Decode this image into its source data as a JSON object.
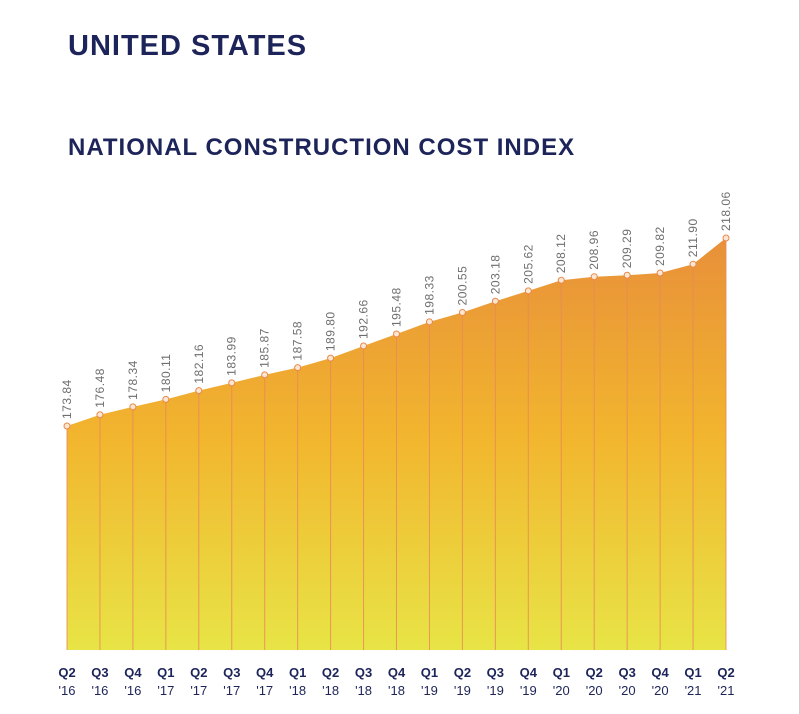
{
  "header": {
    "region_title": "UNITED STATES"
  },
  "colors": {
    "title": "#1d2459",
    "area_top": "#e8903a",
    "area_mid": "#f2b52e",
    "area_bottom": "#e8e446",
    "gridline": "#e98a57",
    "marker_fill": "#fbe6d2",
    "marker_stroke": "#e8874a",
    "value_label": "#6e6e6e"
  },
  "chart_data": {
    "type": "area",
    "title": "NATIONAL CONSTRUCTION COST INDEX",
    "xlabel": "",
    "ylabel": "",
    "ylim": [
      130,
      220
    ],
    "categories": [
      {
        "quarter": "Q2",
        "year": "'16"
      },
      {
        "quarter": "Q3",
        "year": "'16"
      },
      {
        "quarter": "Q4",
        "year": "'16"
      },
      {
        "quarter": "Q1",
        "year": "'17"
      },
      {
        "quarter": "Q2",
        "year": "'17"
      },
      {
        "quarter": "Q3",
        "year": "'17"
      },
      {
        "quarter": "Q4",
        "year": "'17"
      },
      {
        "quarter": "Q1",
        "year": "'18"
      },
      {
        "quarter": "Q2",
        "year": "'18"
      },
      {
        "quarter": "Q3",
        "year": "'18"
      },
      {
        "quarter": "Q4",
        "year": "'18"
      },
      {
        "quarter": "Q1",
        "year": "'19"
      },
      {
        "quarter": "Q2",
        "year": "'19"
      },
      {
        "quarter": "Q3",
        "year": "'19"
      },
      {
        "quarter": "Q4",
        "year": "'19"
      },
      {
        "quarter": "Q1",
        "year": "'20"
      },
      {
        "quarter": "Q2",
        "year": "'20"
      },
      {
        "quarter": "Q3",
        "year": "'20"
      },
      {
        "quarter": "Q4",
        "year": "'20"
      },
      {
        "quarter": "Q1",
        "year": "'21"
      },
      {
        "quarter": "Q2",
        "year": "'21"
      }
    ],
    "series": [
      {
        "name": "National Construction Cost Index",
        "values": [
          173.84,
          176.48,
          178.34,
          180.11,
          182.16,
          183.99,
          185.87,
          187.58,
          189.8,
          192.66,
          195.48,
          198.33,
          200.55,
          203.18,
          205.62,
          208.12,
          208.96,
          209.29,
          209.82,
          211.9,
          218.06
        ],
        "labels": [
          "173.84",
          "176.48",
          "178.34",
          "180.11",
          "182.16",
          "183.99",
          "185.87",
          "187.58",
          "189.80",
          "192.66",
          "195.48",
          "198.33",
          "200.55",
          "203.18",
          "205.62",
          "208.12",
          "208.96",
          "209.29",
          "209.82",
          "211.90",
          "218.06"
        ]
      }
    ]
  }
}
